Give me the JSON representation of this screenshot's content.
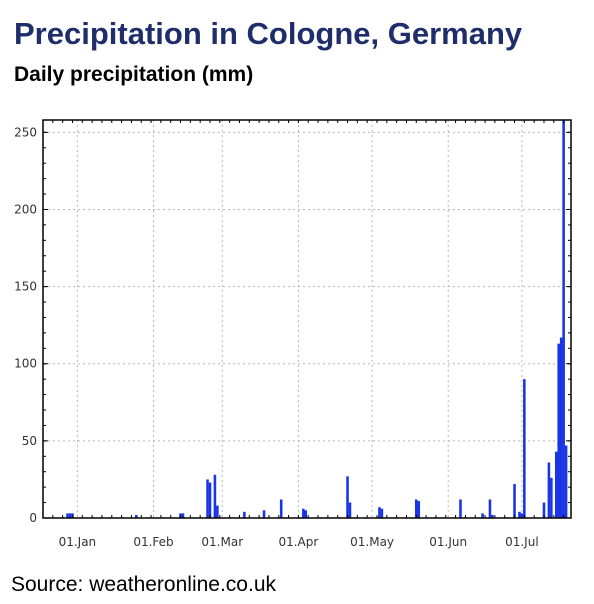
{
  "header": {
    "title": "Precipitation in Cologne, Germany",
    "subtitle": "Daily precipitation (mm)"
  },
  "footer": {
    "source": "Source: weatheronline.co.uk"
  },
  "chart_data": {
    "type": "bar",
    "title": "Precipitation in Cologne, Germany",
    "subtitle": "Daily precipitation (mm)",
    "xlabel": "",
    "ylabel": "",
    "ylim": [
      0,
      258
    ],
    "xlim": [
      "2020-12-18",
      "2021-07-21"
    ],
    "y_ticks": [
      0,
      50,
      100,
      150,
      200,
      250
    ],
    "x_ticks": [
      {
        "date": "2021-01-01",
        "label": "01.Jan"
      },
      {
        "date": "2021-02-01",
        "label": "01.Feb"
      },
      {
        "date": "2021-03-01",
        "label": "01.Mar"
      },
      {
        "date": "2021-04-01",
        "label": "01.Apr"
      },
      {
        "date": "2021-05-01",
        "label": "01.May"
      },
      {
        "date": "2021-06-01",
        "label": "01.Jun"
      },
      {
        "date": "2021-07-01",
        "label": "01.Jul"
      }
    ],
    "grid": true,
    "bar_color": "#1a35e6",
    "points": [
      {
        "date": "2020-12-28",
        "value": 3
      },
      {
        "date": "2020-12-29",
        "value": 3
      },
      {
        "date": "2020-12-30",
        "value": 3
      },
      {
        "date": "2021-01-25",
        "value": 2
      },
      {
        "date": "2021-02-12",
        "value": 3
      },
      {
        "date": "2021-02-13",
        "value": 3
      },
      {
        "date": "2021-02-23",
        "value": 25
      },
      {
        "date": "2021-02-24",
        "value": 23
      },
      {
        "date": "2021-02-26",
        "value": 28
      },
      {
        "date": "2021-02-27",
        "value": 8
      },
      {
        "date": "2021-03-10",
        "value": 4
      },
      {
        "date": "2021-03-18",
        "value": 5
      },
      {
        "date": "2021-03-25",
        "value": 12
      },
      {
        "date": "2021-04-03",
        "value": 6
      },
      {
        "date": "2021-04-04",
        "value": 5
      },
      {
        "date": "2021-04-21",
        "value": 27
      },
      {
        "date": "2021-04-22",
        "value": 10
      },
      {
        "date": "2021-05-04",
        "value": 7
      },
      {
        "date": "2021-05-05",
        "value": 6
      },
      {
        "date": "2021-05-19",
        "value": 12
      },
      {
        "date": "2021-05-20",
        "value": 11
      },
      {
        "date": "2021-06-06",
        "value": 12
      },
      {
        "date": "2021-06-15",
        "value": 3
      },
      {
        "date": "2021-06-18",
        "value": 12
      },
      {
        "date": "2021-06-19",
        "value": 2
      },
      {
        "date": "2021-06-28",
        "value": 22
      },
      {
        "date": "2021-06-30",
        "value": 4
      },
      {
        "date": "2021-07-01",
        "value": 3
      },
      {
        "date": "2021-07-02",
        "value": 90
      },
      {
        "date": "2021-07-10",
        "value": 10
      },
      {
        "date": "2021-07-12",
        "value": 36
      },
      {
        "date": "2021-07-13",
        "value": 26
      },
      {
        "date": "2021-07-15",
        "value": 43
      },
      {
        "date": "2021-07-16",
        "value": 113
      },
      {
        "date": "2021-07-17",
        "value": 117
      },
      {
        "date": "2021-07-18",
        "value": 258
      },
      {
        "date": "2021-07-19",
        "value": 47
      }
    ]
  }
}
